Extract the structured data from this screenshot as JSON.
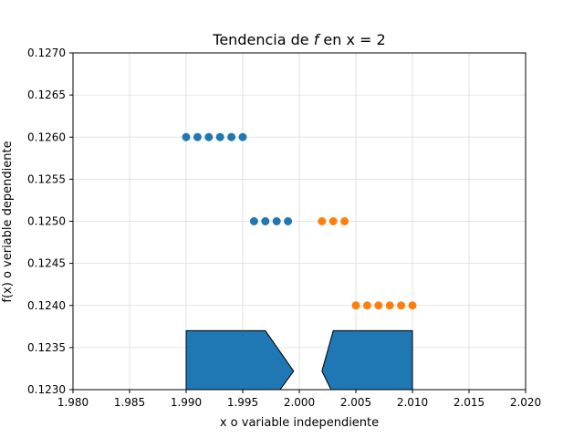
{
  "chart_data": {
    "type": "scatter",
    "title_prefix": "Tendencia de ",
    "title_var": "f",
    "title_suffix": " en x = 2",
    "xlabel": "x o variable independiente",
    "ylabel": "f(x) o veriable dependiente",
    "xlim": [
      1.98,
      2.02
    ],
    "ylim": [
      0.123,
      0.127
    ],
    "xticks": [
      "1.980",
      "1.985",
      "1.990",
      "1.995",
      "2.000",
      "2.005",
      "2.010",
      "2.015",
      "2.020"
    ],
    "yticks": [
      "0.1230",
      "0.1235",
      "0.1240",
      "0.1245",
      "0.1250",
      "0.1255",
      "0.1260",
      "0.1265",
      "0.1270"
    ],
    "grid": true,
    "series": [
      {
        "color": "#1f77b4",
        "points": [
          {
            "x": 1.99,
            "y": 0.126
          },
          {
            "x": 1.991,
            "y": 0.126
          },
          {
            "x": 1.992,
            "y": 0.126
          },
          {
            "x": 1.993,
            "y": 0.126
          },
          {
            "x": 1.994,
            "y": 0.126
          },
          {
            "x": 1.995,
            "y": 0.126
          },
          {
            "x": 1.996,
            "y": 0.125
          },
          {
            "x": 1.997,
            "y": 0.125
          },
          {
            "x": 1.998,
            "y": 0.125
          },
          {
            "x": 1.999,
            "y": 0.125
          }
        ]
      },
      {
        "color": "#ff7f0e",
        "points": [
          {
            "x": 2.002,
            "y": 0.125
          },
          {
            "x": 2.003,
            "y": 0.125
          },
          {
            "x": 2.004,
            "y": 0.125
          },
          {
            "x": 2.005,
            "y": 0.124
          },
          {
            "x": 2.006,
            "y": 0.124
          },
          {
            "x": 2.007,
            "y": 0.124
          },
          {
            "x": 2.008,
            "y": 0.124
          },
          {
            "x": 2.009,
            "y": 0.124
          },
          {
            "x": 2.01,
            "y": 0.124
          }
        ]
      }
    ],
    "arrows": [
      {
        "color": "#1f77b4",
        "polygon": [
          [
            1.99,
            0.123
          ],
          [
            1.99,
            0.1237
          ],
          [
            1.997,
            0.1237
          ],
          [
            1.9995,
            0.12322
          ],
          [
            1.9983,
            0.123
          ]
        ]
      },
      {
        "color": "#1f77b4",
        "polygon": [
          [
            2.01,
            0.123
          ],
          [
            2.01,
            0.1237
          ],
          [
            2.003,
            0.1237
          ],
          [
            2.002,
            0.12322
          ],
          [
            2.0028,
            0.123
          ]
        ]
      }
    ]
  }
}
